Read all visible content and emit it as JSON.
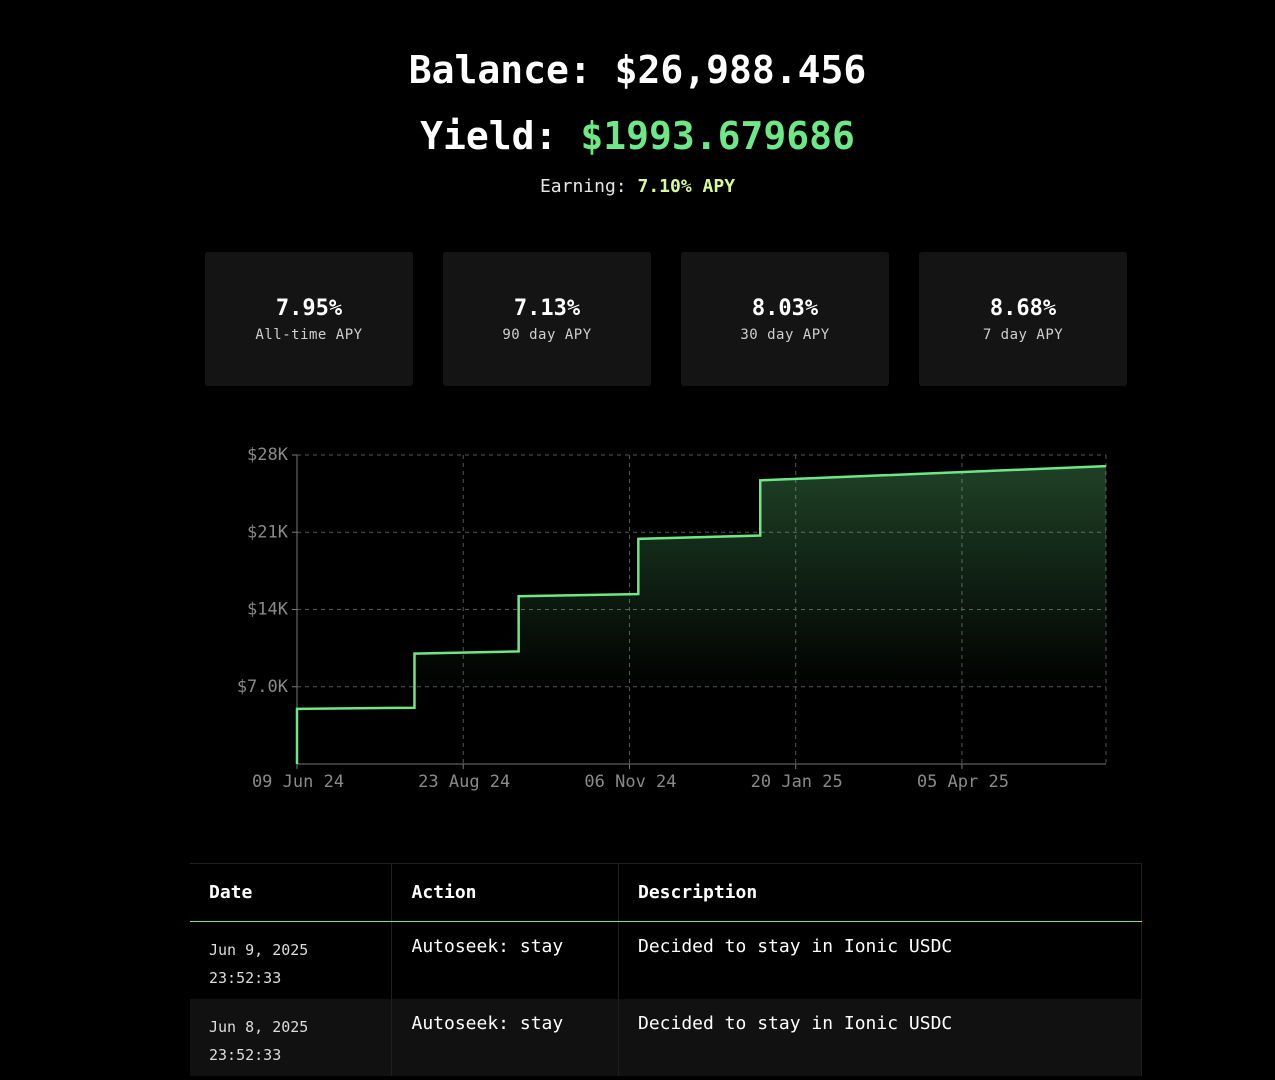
{
  "header": {
    "balance_label": "Balance:",
    "balance": "$26,988.456",
    "yield_label": "Yield:",
    "yield": "$1993.679686",
    "earning_label": "Earning:",
    "earning": "7.10% APY"
  },
  "stats": [
    {
      "value": "7.95%",
      "label": "All-time APY"
    },
    {
      "value": "7.13%",
      "label": "90 day APY"
    },
    {
      "value": "8.03%",
      "label": "30 day APY"
    },
    {
      "value": "8.68%",
      "label": "7 day APY"
    }
  ],
  "chart_data": {
    "type": "line",
    "area": true,
    "grid": true,
    "color": "#6ee787",
    "x": [
      "2024-06-09",
      "2024-06-09",
      "2024-08-01",
      "2024-08-01",
      "2024-09-17",
      "2024-09-17",
      "2024-11-10",
      "2024-11-10",
      "2025-01-04",
      "2025-01-04",
      "2025-06-09"
    ],
    "values": [
      0,
      5000,
      5100,
      10000,
      10200,
      15200,
      15400,
      20400,
      20700,
      25700,
      26990
    ],
    "xlim": [
      "2024-06-09",
      "2025-06-09"
    ],
    "xticks": [
      {
        "value": "2024-06-09",
        "label": "09 Jun 24"
      },
      {
        "value": "2024-08-23",
        "label": "23 Aug 24"
      },
      {
        "value": "2024-11-06",
        "label": "06 Nov 24"
      },
      {
        "value": "2025-01-20",
        "label": "20 Jan 25"
      },
      {
        "value": "2025-04-05",
        "label": "05 Apr 25"
      }
    ],
    "ylim": [
      0,
      28000
    ],
    "yticks": [
      {
        "value": 7000,
        "label": "$7.0K"
      },
      {
        "value": 14000,
        "label": "$14K"
      },
      {
        "value": 21000,
        "label": "$21K"
      },
      {
        "value": 28000,
        "label": "$28K"
      }
    ]
  },
  "table": {
    "columns": [
      "Date",
      "Action",
      "Description"
    ],
    "rows": [
      {
        "date": "Jun 9, 2025",
        "time": "23:52:33",
        "action": "Autoseek: stay",
        "description": "Decided to stay in Ionic USDC"
      },
      {
        "date": "Jun 8, 2025",
        "time": "23:52:33",
        "action": "Autoseek: stay",
        "description": "Decided to stay in Ionic USDC"
      }
    ]
  }
}
